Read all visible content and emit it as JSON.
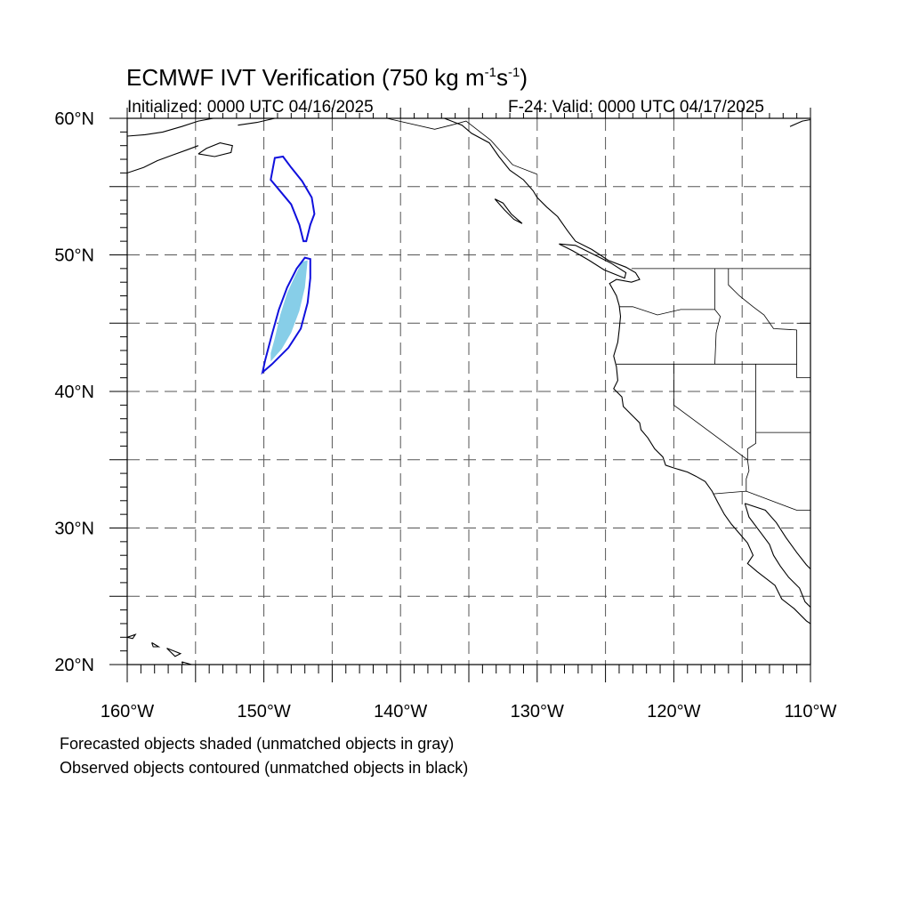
{
  "header": {
    "title_main": "ECMWF IVT Verification (750 kg m",
    "title_exp1": "-1",
    "title_mid": "s",
    "title_exp2": "-1",
    "title_end": ")",
    "initialized": "Initialized: 0000 UTC 04/16/2025",
    "valid": "F-24: Valid: 0000 UTC 04/17/2025"
  },
  "footer": {
    "note_forecast": "Forecasted objects shaded (unmatched objects in gray)",
    "note_observed": "Observed objects contoured (unmatched objects in black)"
  },
  "map": {
    "projection": "lat-lon",
    "lon_range": [
      -160,
      -110
    ],
    "lat_range": [
      20,
      60
    ],
    "grid": true,
    "grid_style": "dashed",
    "lon_labels": [
      "160°W",
      "150°W",
      "140°W",
      "130°W",
      "120°W",
      "110°W"
    ],
    "lat_labels": [
      "60°N",
      "50°N",
      "40°N",
      "30°N",
      "20°N"
    ],
    "colors": {
      "forecast_fill": "#87cee8",
      "observed_contour": "#1010dd",
      "coastline": "#000000"
    },
    "objects": {
      "observed_north": [
        [
          -149.5,
          55.5
        ],
        [
          -149.2,
          57.1
        ],
        [
          -148.6,
          57.2
        ],
        [
          -148,
          56.4
        ],
        [
          -147.2,
          55.4
        ],
        [
          -146.5,
          54.2
        ],
        [
          -146.3,
          53.0
        ],
        [
          -146.6,
          52.2
        ],
        [
          -146.9,
          51.0
        ],
        [
          -147.1,
          51.0
        ],
        [
          -147.4,
          52.2
        ],
        [
          -148.0,
          53.7
        ],
        [
          -149.0,
          54.9
        ]
      ],
      "observed_south": [
        [
          -150.1,
          41.4
        ],
        [
          -149.4,
          42.0
        ],
        [
          -148.2,
          43.2
        ],
        [
          -147.3,
          44.6
        ],
        [
          -146.8,
          46.5
        ],
        [
          -146.6,
          48.3
        ],
        [
          -146.6,
          49.7
        ],
        [
          -147.0,
          49.8
        ],
        [
          -147.6,
          49.0
        ],
        [
          -148.3,
          47.6
        ],
        [
          -148.9,
          46.0
        ],
        [
          -149.4,
          44.2
        ],
        [
          -149.9,
          42.3
        ]
      ],
      "forecast_south": [
        [
          -149.5,
          42.2
        ],
        [
          -148.7,
          43.1
        ],
        [
          -148.0,
          44.3
        ],
        [
          -147.4,
          45.9
        ],
        [
          -147.0,
          47.6
        ],
        [
          -146.8,
          49.6
        ],
        [
          -147.2,
          49.5
        ],
        [
          -147.7,
          48.5
        ],
        [
          -148.3,
          47.2
        ],
        [
          -148.8,
          45.6
        ],
        [
          -149.2,
          43.9
        ],
        [
          -149.5,
          42.8
        ]
      ]
    },
    "coastlines": {
      "us_canada_west": [
        [
          -136.8,
          60
        ],
        [
          -135.5,
          59.5
        ],
        [
          -134.8,
          58.9
        ],
        [
          -133.5,
          58.2
        ],
        [
          -132.8,
          57.2
        ],
        [
          -132,
          56.2
        ],
        [
          -131,
          55.5
        ],
        [
          -130.3,
          54.7
        ],
        [
          -130,
          54.2
        ],
        [
          -129.3,
          53.5
        ],
        [
          -128.5,
          52.8
        ],
        [
          -127.8,
          51.8
        ],
        [
          -127.2,
          51
        ],
        [
          -126,
          50.4
        ],
        [
          -124.8,
          49.6
        ],
        [
          -123.5,
          49.1
        ],
        [
          -122.8,
          48.7
        ],
        [
          -122.5,
          48.2
        ],
        [
          -123.1,
          48.0
        ],
        [
          -124.2,
          48.2
        ],
        [
          -124.7,
          47.9
        ],
        [
          -124.2,
          47
        ],
        [
          -124,
          46.3
        ],
        [
          -123.9,
          45.5
        ],
        [
          -124,
          44.5
        ],
        [
          -124.1,
          43.6
        ],
        [
          -124.4,
          42.6
        ],
        [
          -124.2,
          41.8
        ],
        [
          -124.1,
          40.8
        ],
        [
          -124.4,
          40.2
        ],
        [
          -123.8,
          39.6
        ],
        [
          -123.7,
          38.9
        ],
        [
          -123,
          38.2
        ],
        [
          -122.5,
          37.7
        ],
        [
          -122.4,
          37.2
        ],
        [
          -121.9,
          36.6
        ],
        [
          -121.4,
          35.8
        ],
        [
          -120.8,
          35.2
        ],
        [
          -120.6,
          34.6
        ],
        [
          -120,
          34.4
        ],
        [
          -119,
          34.1
        ],
        [
          -118.4,
          33.8
        ],
        [
          -117.7,
          33.4
        ],
        [
          -117.2,
          32.7
        ],
        [
          -116.8,
          31.9
        ],
        [
          -116.3,
          31.0
        ],
        [
          -115.8,
          30.3
        ],
        [
          -115.2,
          29.6
        ],
        [
          -114.6,
          28.9
        ],
        [
          -114.2,
          28.0
        ],
        [
          -114.6,
          27.4
        ],
        [
          -113.9,
          26.8
        ],
        [
          -112.6,
          25.8
        ],
        [
          -112.1,
          24.8
        ],
        [
          -111.2,
          24.1
        ],
        [
          -110.3,
          23.2
        ],
        [
          -110,
          23
        ]
      ],
      "gulf_california": [
        [
          -114.8,
          31.8
        ],
        [
          -114.5,
          30.8
        ],
        [
          -113.6,
          29.6
        ],
        [
          -113,
          28.8
        ],
        [
          -112.7,
          28.0
        ],
        [
          -112.2,
          27.2
        ],
        [
          -111.6,
          26.4
        ],
        [
          -110.8,
          25.6
        ],
        [
          -110.4,
          24.6
        ],
        [
          -110,
          24.2
        ]
      ],
      "mainland_mexico": [
        [
          -114.8,
          31.8
        ],
        [
          -113.3,
          31.3
        ],
        [
          -112.5,
          30.4
        ],
        [
          -111.8,
          29.3
        ],
        [
          -111.0,
          28.2
        ],
        [
          -110.3,
          27.3
        ],
        [
          -110,
          27
        ]
      ],
      "hawaii_1": [
        [
          -160,
          22.0
        ],
        [
          -159.4,
          22.2
        ],
        [
          -159.6,
          21.9
        ],
        [
          -160,
          22.0
        ]
      ],
      "hawaii_2": [
        [
          -158.2,
          21.6
        ],
        [
          -157.7,
          21.3
        ],
        [
          -158.1,
          21.3
        ],
        [
          -158.2,
          21.6
        ]
      ],
      "hawaii_3": [
        [
          -157.1,
          21.2
        ],
        [
          -156.6,
          21.0
        ],
        [
          -156.1,
          20.8
        ],
        [
          -156.5,
          20.6
        ],
        [
          -157.1,
          21.2
        ]
      ],
      "hawaii_4": [
        [
          -156.0,
          20.2
        ],
        [
          -155.3,
          20.0
        ],
        [
          -154.9,
          19.6
        ],
        [
          -155.6,
          19.2
        ],
        [
          -156.0,
          20.2
        ]
      ],
      "alaska_pen": [
        [
          -160,
          58.7
        ],
        [
          -158.7,
          58.8
        ],
        [
          -157.4,
          59.0
        ],
        [
          -156.0,
          59.4
        ],
        [
          -154.8,
          59.8
        ],
        [
          -153.7,
          60
        ]
      ],
      "alaska_pen_south": [
        [
          -160,
          56.0
        ],
        [
          -158.8,
          56.4
        ],
        [
          -157.8,
          56.9
        ],
        [
          -156.7,
          57.3
        ],
        [
          -155.6,
          57.7
        ],
        [
          -154.8,
          58.0
        ]
      ],
      "kodiak": [
        [
          -154.8,
          57.4
        ],
        [
          -153.6,
          57.2
        ],
        [
          -152.4,
          57.5
        ],
        [
          -152.3,
          58.0
        ],
        [
          -153.2,
          58.2
        ],
        [
          -154.2,
          57.8
        ],
        [
          -154.8,
          57.4
        ]
      ],
      "gulf_alaska_n": [
        [
          -151.9,
          59.5
        ],
        [
          -150.5,
          59.7
        ],
        [
          -149.2,
          60
        ],
        [
          -148,
          60
        ]
      ],
      "queen_charlotte": [
        [
          -133.1,
          54.1
        ],
        [
          -132.4,
          53.3
        ],
        [
          -131.7,
          52.6
        ],
        [
          -131.1,
          52.3
        ],
        [
          -131.9,
          53.0
        ],
        [
          -132.5,
          53.8
        ],
        [
          -133.1,
          54.1
        ]
      ],
      "vancouver_island": [
        [
          -128.4,
          50.8
        ],
        [
          -127.4,
          50.3
        ],
        [
          -126.2,
          49.6
        ],
        [
          -125.1,
          48.9
        ],
        [
          -123.6,
          48.3
        ],
        [
          -123.5,
          48.7
        ],
        [
          -124.6,
          49.4
        ],
        [
          -125.8,
          50.0
        ],
        [
          -127.2,
          50.7
        ],
        [
          -128.4,
          50.8
        ]
      ],
      "hudson_north": [
        [
          -111.5,
          59.4
        ],
        [
          -110.6,
          59.8
        ],
        [
          -110,
          59.9
        ]
      ]
    },
    "borders": {
      "canada_us": [
        [
          -123.1,
          49
        ],
        [
          -110,
          49
        ]
      ],
      "or_wa": [
        [
          -124,
          46.2
        ],
        [
          -123,
          46.2
        ],
        [
          -121.2,
          45.6
        ],
        [
          -119.5,
          46.0
        ],
        [
          -117,
          46.0
        ]
      ],
      "wa_id": [
        [
          -117,
          49
        ],
        [
          -117,
          46.0
        ]
      ],
      "or_id": [
        [
          -117,
          46.0
        ],
        [
          -116.6,
          45.5
        ],
        [
          -116.9,
          44.3
        ],
        [
          -117.0,
          42
        ]
      ],
      "or_ca_nv_id_ut": [
        [
          -124.2,
          42
        ],
        [
          -111,
          42
        ]
      ],
      "ca_nv": [
        [
          -120,
          42
        ],
        [
          -120,
          39
        ],
        [
          -114.6,
          35
        ]
      ],
      "nv_ut": [
        [
          -114,
          42
        ],
        [
          -114,
          37
        ]
      ],
      "nv_az": [
        [
          -114,
          37
        ],
        [
          -114.0,
          36.2
        ],
        [
          -114.6,
          35.8
        ],
        [
          -114.6,
          35.0
        ]
      ],
      "ut_co": [
        [
          -111,
          42
        ],
        [
          -111,
          41
        ],
        [
          -110,
          41
        ]
      ],
      "ut_az": [
        [
          -114,
          37
        ],
        [
          -110,
          37
        ]
      ],
      "id_mt": [
        [
          -116,
          49
        ],
        [
          -116,
          47.8
        ],
        [
          -115.2,
          47.0
        ],
        [
          -114.2,
          46.2
        ],
        [
          -113.4,
          45.6
        ],
        [
          -112.7,
          44.6
        ],
        [
          -111,
          44.5
        ]
      ],
      "id_wy": [
        [
          -111,
          44.5
        ],
        [
          -111,
          42
        ]
      ],
      "mt_wy": [
        [
          -111,
          45
        ],
        [
          -110,
          45
        ]
      ],
      "ca_az": [
        [
          -114.6,
          35
        ],
        [
          -114.5,
          34.2
        ],
        [
          -114.7,
          33.6
        ],
        [
          -114.7,
          32.7
        ]
      ],
      "us_mexico": [
        [
          -117.1,
          32.5
        ],
        [
          -114.7,
          32.7
        ],
        [
          -111,
          31.3
        ],
        [
          -110,
          31.3
        ]
      ],
      "bc_ak": [
        [
          -141,
          60
        ],
        [
          -137.5,
          59.2
        ],
        [
          -136.3,
          59.5
        ],
        [
          -135.2,
          59.8
        ],
        [
          -133.4,
          58.4
        ],
        [
          -131.8,
          56.6
        ],
        [
          -130.0,
          55.9
        ]
      ]
    }
  }
}
